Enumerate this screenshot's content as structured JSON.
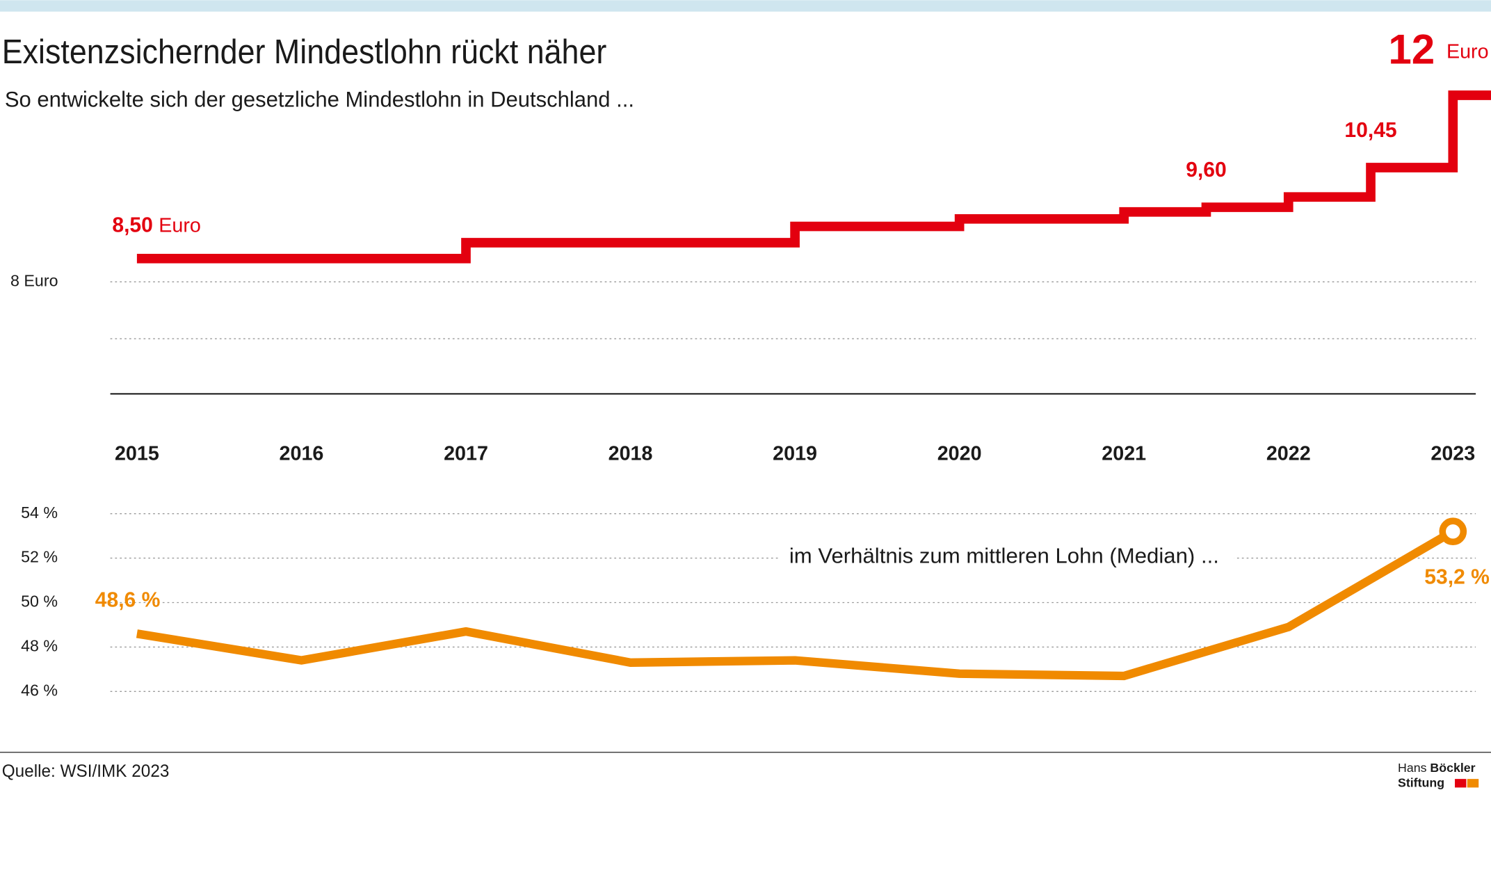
{
  "chart_data": [
    {
      "type": "line",
      "step": true,
      "title": "Existenzsichernder Mindestlohn rückt näher",
      "subtitle": "So entwickelte sich der gesetzliche Mindestlohn in Deutschland ...",
      "x": [
        2015,
        2017,
        2019,
        2020,
        2021,
        2021.5,
        2022,
        2022.5,
        2023
      ],
      "series": [
        {
          "color": "#e3000f",
          "values": [
            8.5,
            8.84,
            9.19,
            9.35,
            9.5,
            9.6,
            9.82,
            10.45,
            12
          ],
          "value_labels": [
            "8,50",
            null,
            null,
            null,
            null,
            "9,60",
            null,
            "10,45",
            "12"
          ],
          "unit": "Euro"
        }
      ],
      "xlim": [
        2015,
        2023
      ],
      "xticks": [
        2015,
        2016,
        2017,
        2018,
        2019,
        2020,
        2021,
        2022,
        2023
      ],
      "ylim": [
        5.6,
        12
      ],
      "yticks": [
        {
          "value": 8,
          "label": "8 Euro"
        }
      ],
      "grid": true
    },
    {
      "type": "line",
      "annotation": "im Verhältnis zum mittleren Lohn (Median) ...",
      "x": [
        2015,
        2016,
        2017,
        2018,
        2019,
        2020,
        2021,
        2022,
        2023
      ],
      "series": [
        {
          "color": "#f08a00",
          "values": [
            48.6,
            47.4,
            48.7,
            47.3,
            47.4,
            46.8,
            46.7,
            48.9,
            53.2
          ],
          "value_labels": [
            "48,6 %",
            null,
            null,
            null,
            null,
            null,
            null,
            null,
            "53,2 %"
          ]
        }
      ],
      "xlim": [
        2015,
        2023
      ],
      "ylim": [
        46,
        54
      ],
      "yticks": [
        {
          "value": 46,
          "label": "46 %"
        },
        {
          "value": 48,
          "label": "48 %"
        },
        {
          "value": 50,
          "label": "50 %"
        },
        {
          "value": 52,
          "label": "52 %"
        },
        {
          "value": 54,
          "label": "54 %"
        }
      ],
      "grid": true
    }
  ],
  "source": "Quelle: WSI/IMK 2023",
  "logo": {
    "line1a": "Hans",
    "line1b": "Böckler",
    "line2": "Stiftung"
  }
}
